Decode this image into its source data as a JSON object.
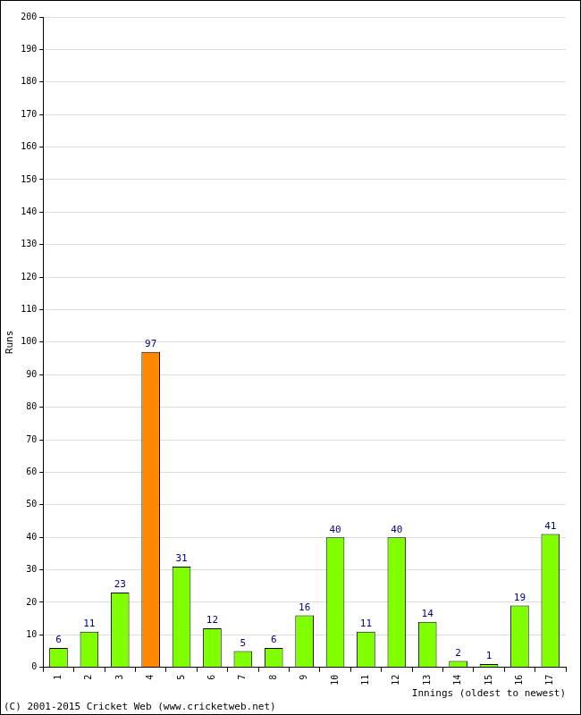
{
  "chart_data": {
    "type": "bar",
    "xlabel": "Innings (oldest to newest)",
    "ylabel": "Runs",
    "annotations": [
      "(C) 2001-2015 Cricket Web (www.cricketweb.net)"
    ],
    "categories": [
      "1",
      "2",
      "3",
      "4",
      "5",
      "6",
      "7",
      "8",
      "9",
      "10",
      "11",
      "12",
      "13",
      "14",
      "15",
      "16",
      "17"
    ],
    "values": [
      6,
      11,
      23,
      97,
      31,
      12,
      5,
      6,
      16,
      40,
      11,
      40,
      14,
      2,
      1,
      19,
      41
    ],
    "colors": [
      "#80ff00",
      "#80ff00",
      "#80ff00",
      "#ff8800",
      "#80ff00",
      "#80ff00",
      "#80ff00",
      "#80ff00",
      "#80ff00",
      "#80ff00",
      "#80ff00",
      "#80ff00",
      "#80ff00",
      "#80ff00",
      "#80ff00",
      "#80ff00",
      "#80ff00"
    ],
    "ylim": [
      0,
      200
    ],
    "yticks": [
      0,
      10,
      20,
      30,
      40,
      50,
      60,
      70,
      80,
      90,
      100,
      110,
      120,
      130,
      140,
      150,
      160,
      170,
      180,
      190,
      200
    ],
    "grid": true,
    "data_labels": true
  }
}
